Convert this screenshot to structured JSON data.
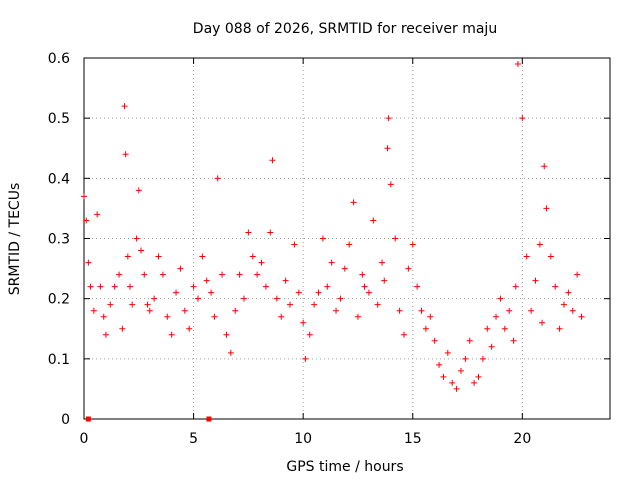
{
  "chart_data": {
    "type": "scatter",
    "title": "Day 088 of 2026, SRMTID for receiver maju",
    "xlabel": "GPS time / hours",
    "ylabel": "SRMTID / TECUs",
    "xlim": [
      0,
      24
    ],
    "ylim": [
      0,
      0.6
    ],
    "xticks": [
      0,
      5,
      10,
      15,
      20
    ],
    "xtick_labels": [
      "0",
      "5",
      "10",
      "15",
      "20"
    ],
    "yticks": [
      0,
      0.1,
      0.2,
      0.3,
      0.4,
      0.5,
      0.6
    ],
    "ytick_labels": [
      "0",
      "0.1",
      "0.2",
      "0.3",
      "0.4",
      "0.5",
      "0.6"
    ],
    "grid": true,
    "marker": "+",
    "color": "#ff0000",
    "series": [
      {
        "name": "SRMTID",
        "x": [
          0.0,
          0.1,
          0.2,
          0.3,
          0.45,
          0.6,
          0.75,
          0.9,
          1.0,
          1.2,
          1.4,
          1.6,
          1.75,
          1.85,
          1.9,
          2.0,
          2.1,
          2.2,
          2.4,
          2.5,
          2.6,
          2.75,
          2.9,
          3.0,
          3.2,
          3.4,
          3.6,
          3.8,
          4.0,
          4.2,
          4.4,
          4.6,
          4.8,
          5.0,
          5.2,
          5.4,
          5.6,
          5.8,
          5.95,
          6.1,
          6.3,
          6.5,
          6.7,
          6.9,
          7.1,
          7.3,
          7.5,
          7.7,
          7.9,
          8.1,
          8.3,
          8.5,
          8.6,
          8.8,
          9.0,
          9.2,
          9.4,
          9.6,
          9.8,
          10.0,
          10.1,
          10.3,
          10.5,
          10.7,
          10.9,
          11.1,
          11.3,
          11.5,
          11.7,
          11.9,
          12.1,
          12.3,
          12.5,
          12.7,
          12.8,
          13.0,
          13.2,
          13.4,
          13.6,
          13.7,
          13.85,
          13.9,
          14.0,
          14.2,
          14.4,
          14.6,
          14.8,
          15.0,
          15.2,
          15.4,
          15.6,
          15.8,
          16.0,
          16.2,
          16.4,
          16.6,
          16.8,
          17.0,
          17.2,
          17.4,
          17.6,
          17.8,
          18.0,
          18.2,
          18.4,
          18.6,
          18.8,
          19.0,
          19.2,
          19.4,
          19.6,
          19.7,
          19.8,
          20.0,
          20.2,
          20.4,
          20.6,
          20.8,
          20.9,
          21.0,
          21.1,
          21.3,
          21.5,
          21.7,
          21.9,
          22.1,
          22.3,
          22.5,
          22.7
        ],
        "values": [
          0.37,
          0.33,
          0.26,
          0.22,
          0.18,
          0.34,
          0.22,
          0.17,
          0.14,
          0.19,
          0.22,
          0.24,
          0.15,
          0.52,
          0.44,
          0.27,
          0.22,
          0.19,
          0.3,
          0.38,
          0.28,
          0.24,
          0.19,
          0.18,
          0.2,
          0.27,
          0.24,
          0.17,
          0.14,
          0.21,
          0.25,
          0.18,
          0.15,
          0.22,
          0.2,
          0.27,
          0.23,
          0.21,
          0.17,
          0.4,
          0.24,
          0.14,
          0.11,
          0.18,
          0.24,
          0.2,
          0.31,
          0.27,
          0.24,
          0.26,
          0.22,
          0.31,
          0.43,
          0.2,
          0.17,
          0.23,
          0.19,
          0.29,
          0.21,
          0.16,
          0.1,
          0.14,
          0.19,
          0.21,
          0.3,
          0.22,
          0.26,
          0.18,
          0.2,
          0.25,
          0.29,
          0.36,
          0.17,
          0.24,
          0.22,
          0.21,
          0.33,
          0.19,
          0.26,
          0.23,
          0.45,
          0.5,
          0.39,
          0.3,
          0.18,
          0.14,
          0.25,
          0.29,
          0.22,
          0.18,
          0.15,
          0.17,
          0.13,
          0.09,
          0.07,
          0.11,
          0.06,
          0.05,
          0.08,
          0.1,
          0.13,
          0.06,
          0.07,
          0.1,
          0.15,
          0.12,
          0.17,
          0.2,
          0.15,
          0.18,
          0.13,
          0.22,
          0.59,
          0.5,
          0.27,
          0.18,
          0.23,
          0.29,
          0.16,
          0.42,
          0.35,
          0.27,
          0.22,
          0.15,
          0.19,
          0.21,
          0.18,
          0.24,
          0.17
        ],
        "zero_points_x": [
          0.2,
          5.7
        ]
      }
    ]
  }
}
